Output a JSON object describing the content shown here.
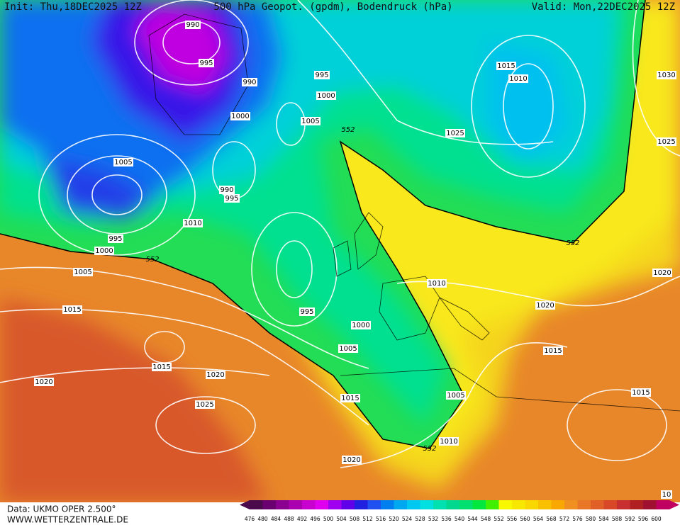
{
  "header": {
    "init": "Init: Thu,18DEC2025 12Z",
    "title": "500 hPa Geopot. (gpdm), Bodendruck (hPa)",
    "valid": "Valid: Mon,22DEC2025 12Z"
  },
  "isobar_labels": [
    "990",
    "995",
    "990",
    "995",
    "1000",
    "1005",
    "1000",
    "552",
    "1025",
    "1015",
    "1010",
    "1030",
    "1025",
    "1005",
    "990",
    "995",
    "995",
    "1000",
    "1010",
    "552",
    "1005",
    "1015",
    "995",
    "1000",
    "1005",
    "1010",
    "1020",
    "1015",
    "552",
    "1020",
    "1015",
    "1020",
    "1020",
    "1025",
    "1015",
    "1005",
    "1015",
    "1010",
    "552",
    "1020",
    "10"
  ],
  "footer": {
    "data": "Data: UKMO OPER 2.500°",
    "site": "WWW.WETTERZENTRALE.DE"
  },
  "colorbar": {
    "labels": [
      476,
      480,
      484,
      488,
      492,
      496,
      500,
      504,
      508,
      512,
      516,
      520,
      524,
      528,
      532,
      536,
      540,
      544,
      548,
      552,
      556,
      560,
      564,
      568,
      572,
      576,
      580,
      584,
      588,
      592,
      596,
      600
    ]
  }
}
